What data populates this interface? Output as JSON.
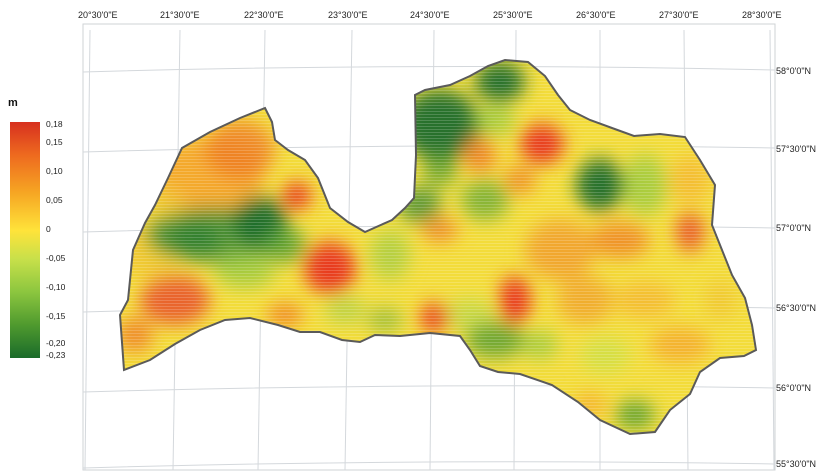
{
  "legend": {
    "unit": "m",
    "labels": [
      "0,18",
      "0,15",
      "0,10",
      "0,05",
      "0",
      "-0,05",
      "-0,10",
      "-0,15",
      "-0,20",
      "-0,23"
    ],
    "colors": [
      "#d7301f",
      "#ee6a1f",
      "#f6a623",
      "#ffe33a",
      "#c8e04a",
      "#8cc63f",
      "#4f9a2e",
      "#1a6b2a"
    ]
  },
  "axes": {
    "longitude_labels": [
      "20°30'0\"E",
      "21°30'0\"E",
      "22°30'0\"E",
      "23°30'0\"E",
      "24°30'0\"E",
      "25°30'0\"E",
      "26°30'0\"E",
      "27°30'0\"E",
      "28°30'0\"E"
    ],
    "latitude_labels": [
      "58°0'0\"N",
      "57°30'0\"N",
      "57°0'0\"N",
      "56°30'0\"N",
      "56°0'0\"N",
      "55°30'0\"N"
    ]
  },
  "colors": {
    "outline": "#5a5a5a",
    "graticule": "#d4d8dc",
    "high": "#e8331f",
    "mid": "#ffe640",
    "low": "#1d6b2c"
  }
}
